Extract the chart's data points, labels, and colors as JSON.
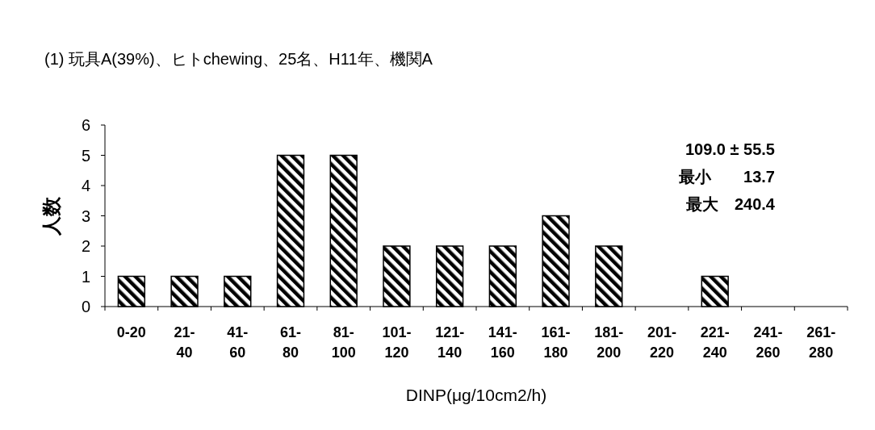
{
  "chart_data": {
    "type": "bar",
    "title": "(1) 玩具A(39%)、ヒトchewing、25名、H11年、機関A",
    "xlabel": "DINP(μg/10cm2/h)",
    "ylabel": "人数",
    "categories": [
      "0-20",
      "21-\n40",
      "41-\n60",
      "61-\n80",
      "81-\n100",
      "101-\n120",
      "121-\n140",
      "141-\n160",
      "161-\n180",
      "181-\n200",
      "201-\n220",
      "221-\n240",
      "241-\n260",
      "261-\n280"
    ],
    "values": [
      1,
      1,
      1,
      5,
      5,
      2,
      2,
      2,
      3,
      2,
      0,
      1,
      0,
      0
    ],
    "color": "#000000",
    "ylim": [
      0,
      6
    ],
    "yticks": [
      0,
      1,
      2,
      3,
      4,
      5,
      6
    ],
    "annotations": [
      "109.0 ± 55.5",
      "最小　　13.7",
      "最大　240.4"
    ]
  }
}
